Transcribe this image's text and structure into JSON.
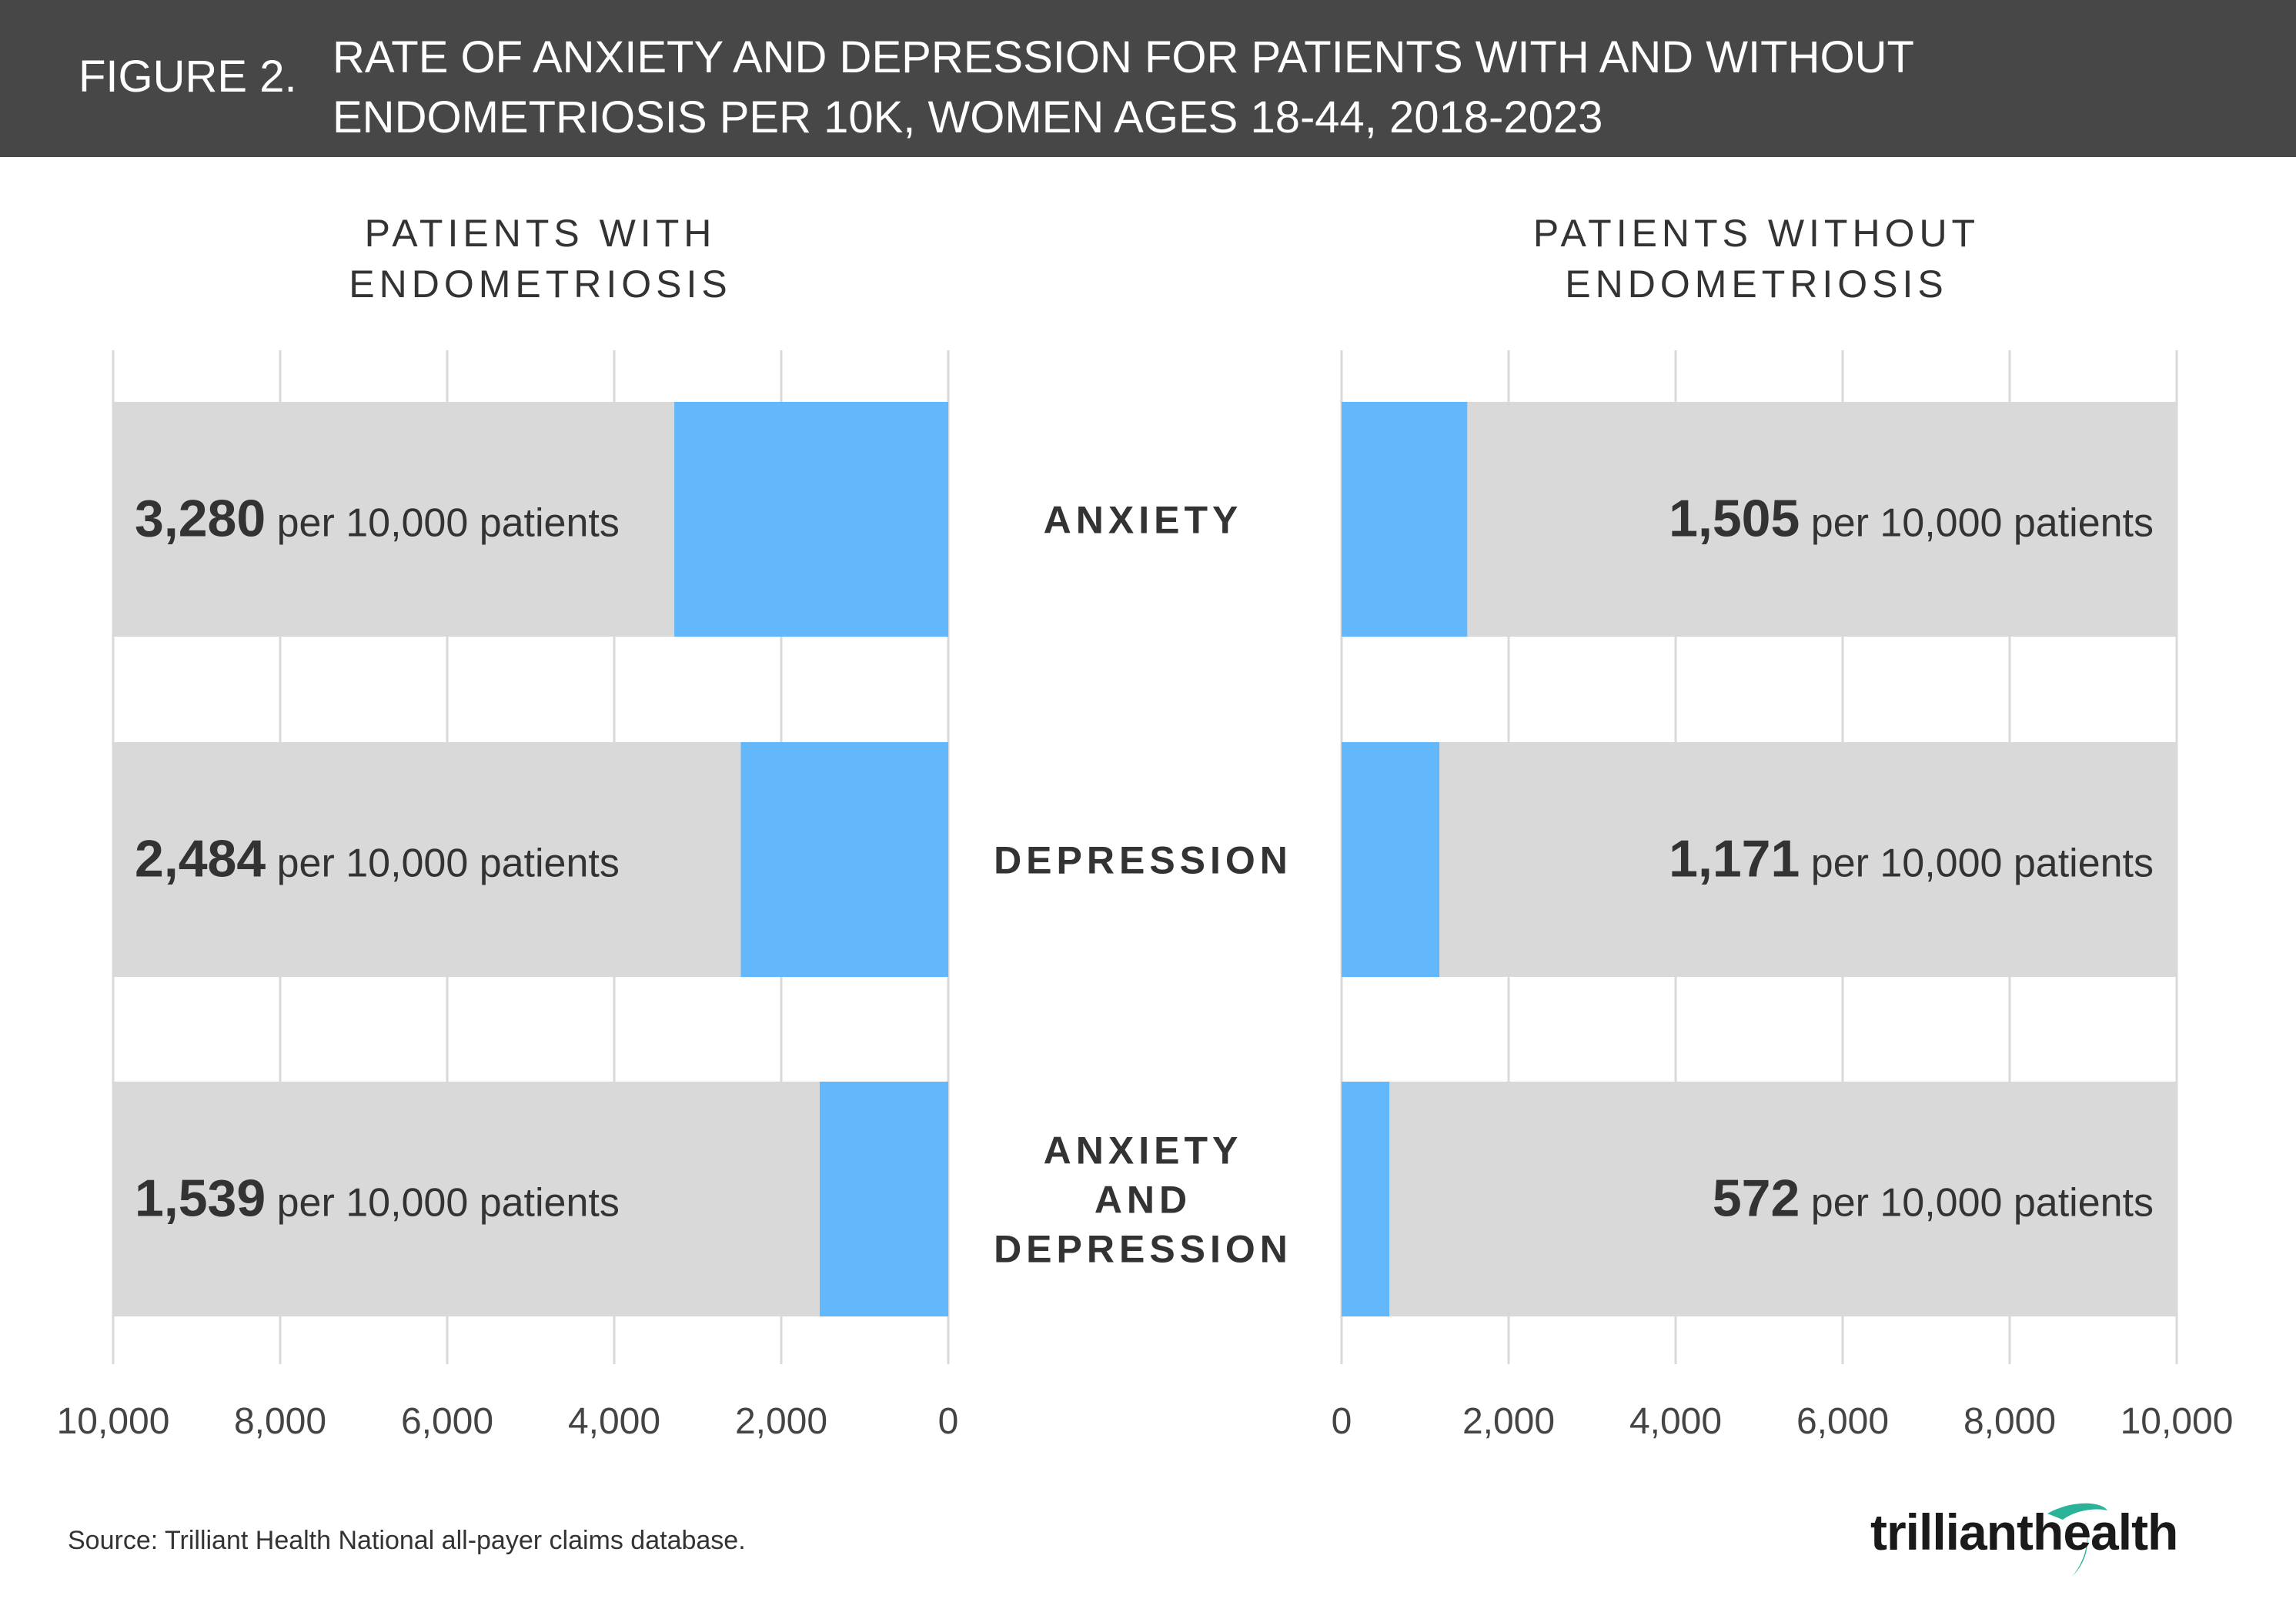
{
  "header": {
    "figure_number": "FIGURE 2.",
    "title_line1": "RATE OF ANXIETY AND DEPRESSION FOR PATIENTS WITH AND WITHOUT",
    "title_line2": "ENDOMETRIOSIS PER 10K, WOMEN AGES 18-44, 2018-2023"
  },
  "panels": {
    "left_title_line1": "PATIENTS WITH",
    "left_title_line2": "ENDOMETRIOSIS",
    "right_title_line1": "PATIENTS WITHOUT",
    "right_title_line2": "ENDOMETRIOSIS"
  },
  "colors": {
    "header_bg": "#474747",
    "bar_fill": "#62B8FB",
    "bar_track": "#D9D9D9",
    "grid": "#D9D9D9",
    "text": "#333333",
    "logo_accent": "#2BB39A"
  },
  "chart_data": {
    "type": "bar",
    "orientation": "horizontal",
    "categories": [
      {
        "lines": [
          "ANXIETY"
        ]
      },
      {
        "lines": [
          "DEPRESSION"
        ]
      },
      {
        "lines": [
          "ANXIETY",
          "AND",
          "DEPRESSION"
        ]
      }
    ],
    "xlim": [
      0,
      10000
    ],
    "ticks": [
      0,
      2000,
      4000,
      6000,
      8000,
      10000
    ],
    "tick_labels": [
      "0",
      "2,000",
      "4,000",
      "6,000",
      "8,000",
      "10,000"
    ],
    "grid": true,
    "unit_suffix": "per 10,000 patients",
    "series": [
      {
        "name": "PATIENTS WITH ENDOMETRIOSIS",
        "direction": "reversed",
        "values": [
          3280,
          2484,
          1539
        ],
        "value_labels": [
          "3,280",
          "2,484",
          "1,539"
        ]
      },
      {
        "name": "PATIENTS WITHOUT ENDOMETRIOSIS",
        "direction": "normal",
        "values": [
          1505,
          1171,
          572
        ],
        "value_labels": [
          "1,505",
          "1,171",
          "572"
        ]
      }
    ]
  },
  "footer": {
    "source": "Source: Trilliant Health National all-payer claims database.",
    "logo_text_a": "trilliant",
    "logo_text_b": "health"
  }
}
